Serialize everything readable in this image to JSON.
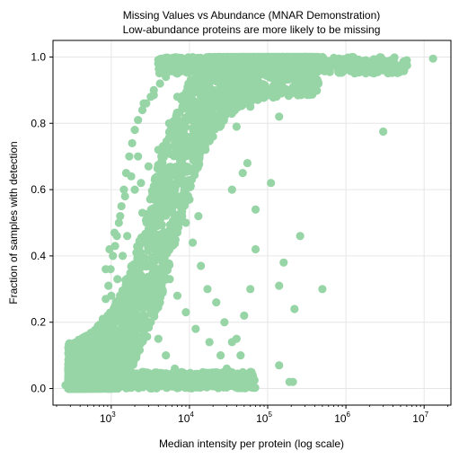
{
  "chart_data": {
    "type": "scatter",
    "title": "Missing Values vs Abundance (MNAR Demonstration)",
    "subtitle": "Low-abundance proteins are more likely to be missing",
    "xlabel": "Median intensity per protein (log scale)",
    "ylabel": "Fraction of samples with detection",
    "x_scale": "log",
    "xlim": [
      180,
      22000000
    ],
    "ylim": [
      -0.05,
      1.05
    ],
    "x_ticks": [
      {
        "value": 1000,
        "base": "10",
        "exp": "3"
      },
      {
        "value": 10000,
        "base": "10",
        "exp": "4"
      },
      {
        "value": 100000,
        "base": "10",
        "exp": "5"
      },
      {
        "value": 1000000,
        "base": "10",
        "exp": "6"
      },
      {
        "value": 10000000,
        "base": "10",
        "exp": "7"
      }
    ],
    "y_ticks": [
      "0.0",
      "0.2",
      "0.4",
      "0.6",
      "0.8",
      "1.0"
    ],
    "grid": true,
    "point_color": "#97d5a6",
    "series": [
      {
        "points": [
          [
            260,
            0.01
          ],
          [
            350,
            0.015
          ],
          [
            480,
            0.05
          ],
          [
            560,
            0.08
          ],
          [
            610,
            0.12
          ],
          [
            700,
            0.17
          ],
          [
            780,
            0.21
          ],
          [
            850,
            0.27
          ],
          [
            920,
            0.31
          ],
          [
            980,
            0.36
          ],
          [
            1050,
            0.4
          ],
          [
            1120,
            0.43
          ],
          [
            1180,
            0.46
          ],
          [
            1250,
            0.5
          ],
          [
            1350,
            0.55
          ],
          [
            1450,
            0.6
          ],
          [
            1550,
            0.65
          ],
          [
            1700,
            0.7
          ],
          [
            1850,
            0.74
          ],
          [
            2000,
            0.78
          ],
          [
            2200,
            0.81
          ],
          [
            2500,
            0.84
          ],
          [
            2800,
            0.86
          ],
          [
            3200,
            0.88
          ],
          [
            3500,
            0.9
          ],
          [
            4200,
            0.92
          ],
          [
            5000,
            0.94
          ],
          [
            7000,
            0.95
          ],
          [
            10000,
            0.99
          ],
          [
            14000,
            0.98
          ],
          [
            20000,
            0.98
          ],
          [
            30000,
            0.99
          ],
          [
            50000,
            0.99
          ],
          [
            80000,
            1.0
          ],
          [
            120000,
            1.0
          ],
          [
            200000,
            0.99
          ],
          [
            300000,
            1.0
          ],
          [
            500000,
            1.0
          ],
          [
            800000,
            0.99
          ],
          [
            1200000,
            1.0
          ],
          [
            1800000,
            0.99
          ],
          [
            3000000,
            0.99
          ],
          [
            4000000,
            0.99
          ],
          [
            6000000,
            0.99
          ],
          [
            13000000,
            0.995
          ],
          [
            3000000,
            0.775
          ],
          [
            3500,
            0.885
          ],
          [
            2600,
            0.86
          ],
          [
            7000,
            0.88
          ],
          [
            15000,
            0.84
          ],
          [
            25000,
            0.83
          ],
          [
            60000,
            0.85
          ],
          [
            140000,
            0.82
          ],
          [
            40000,
            0.79
          ],
          [
            55000,
            0.68
          ],
          [
            48000,
            0.65
          ],
          [
            35000,
            0.6
          ],
          [
            110000,
            0.62
          ],
          [
            70000,
            0.54
          ],
          [
            260000,
            0.46
          ],
          [
            70000,
            0.42
          ],
          [
            160000,
            0.38
          ],
          [
            500000,
            0.3
          ],
          [
            140000,
            0.31
          ],
          [
            220000,
            0.24
          ],
          [
            60000,
            0.3
          ],
          [
            50000,
            0.22
          ],
          [
            40000,
            0.15
          ],
          [
            30000,
            0.06
          ],
          [
            140000,
            0.07
          ],
          [
            210000,
            0.02
          ],
          [
            190000,
            0.02
          ],
          [
            30000,
            0.02
          ],
          [
            20000,
            0.04
          ],
          [
            60000,
            0.05
          ],
          [
            2000,
            0.6
          ],
          [
            1600,
            0.46
          ],
          [
            1400,
            0.4
          ],
          [
            1200,
            0.33
          ],
          [
            1000,
            0.28
          ],
          [
            900,
            0.22
          ],
          [
            820,
            0.17
          ],
          [
            760,
            0.12
          ],
          [
            700,
            0.09
          ],
          [
            640,
            0.05
          ],
          [
            600,
            0.03
          ],
          [
            900,
            0.01
          ],
          [
            1300,
            0.02
          ],
          [
            2000,
            0.01
          ],
          [
            3000,
            0.02
          ],
          [
            4200,
            0.01
          ],
          [
            6000,
            0.02
          ],
          [
            9000,
            0.01
          ],
          [
            12000,
            0.02
          ],
          [
            16000,
            0.03
          ],
          [
            25000,
            0.1
          ],
          [
            18000,
            0.14
          ],
          [
            12000,
            0.18
          ],
          [
            9000,
            0.23
          ],
          [
            7000,
            0.28
          ],
          [
            5600,
            0.33
          ],
          [
            4500,
            0.38
          ],
          [
            3600,
            0.43
          ],
          [
            3000,
            0.48
          ],
          [
            2500,
            0.53
          ],
          [
            9000,
            0.5
          ],
          [
            11000,
            0.44
          ],
          [
            14000,
            0.37
          ],
          [
            17000,
            0.3
          ],
          [
            22000,
            0.26
          ],
          [
            28000,
            0.2
          ],
          [
            35000,
            0.14
          ],
          [
            45000,
            0.1
          ],
          [
            12000,
            0.66
          ],
          [
            9000,
            0.71
          ],
          [
            7000,
            0.76
          ],
          [
            5500,
            0.8
          ],
          [
            16000,
            0.72
          ],
          [
            20000,
            0.76
          ],
          [
            24000,
            0.86
          ],
          [
            30000,
            0.9
          ],
          [
            40000,
            0.93
          ],
          [
            2200,
            0.7
          ],
          [
            1800,
            0.64
          ],
          [
            1500,
            0.58
          ],
          [
            1300,
            0.52
          ],
          [
            1100,
            0.47
          ],
          [
            950,
            0.42
          ],
          [
            850,
            0.36
          ],
          [
            2400,
            0.25
          ],
          [
            3200,
            0.2
          ],
          [
            4000,
            0.15
          ],
          [
            5000,
            0.1
          ],
          [
            6500,
            0.06
          ],
          [
            8000,
            0.04
          ],
          [
            2600,
            0.31
          ],
          [
            2000,
            0.35
          ],
          [
            6000,
            0.58
          ],
          [
            8000,
            0.62
          ],
          [
            10000,
            0.57
          ],
          [
            13000,
            0.52
          ],
          [
            4000,
            0.72
          ],
          [
            3000,
            0.67
          ],
          [
            2400,
            0.62
          ]
        ]
      }
    ]
  }
}
